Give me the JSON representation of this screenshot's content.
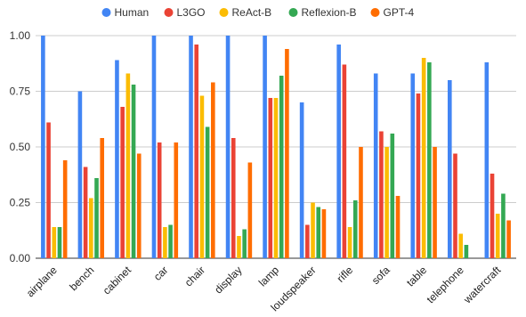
{
  "chart_data": {
    "type": "bar",
    "categories": [
      "airplane",
      "bench",
      "cabinet",
      "car",
      "chair",
      "display",
      "lamp",
      "loudspeaker",
      "rifle",
      "sofa",
      "table",
      "telephone",
      "watercraft"
    ],
    "series": [
      {
        "name": "Human",
        "color": "#4285F4",
        "values": [
          1.0,
          0.75,
          0.89,
          1.0,
          1.0,
          1.0,
          1.0,
          0.7,
          0.96,
          0.83,
          0.83,
          0.8,
          0.88
        ]
      },
      {
        "name": "L3GO",
        "color": "#EA4335",
        "values": [
          0.61,
          0.41,
          0.68,
          0.52,
          0.96,
          0.54,
          0.72,
          0.15,
          0.87,
          0.57,
          0.74,
          0.47,
          0.38
        ]
      },
      {
        "name": "ReAct-B",
        "color": "#FBBC04",
        "values": [
          0.14,
          0.27,
          0.83,
          0.14,
          0.73,
          0.1,
          0.72,
          0.25,
          0.14,
          0.5,
          0.9,
          0.11,
          0.2
        ]
      },
      {
        "name": "Reflexion-B",
        "color": "#34A853",
        "values": [
          0.14,
          0.36,
          0.78,
          0.15,
          0.59,
          0.13,
          0.82,
          0.23,
          0.26,
          0.56,
          0.88,
          0.06,
          0.29
        ]
      },
      {
        "name": "GPT-4",
        "color": "#FF6D01",
        "values": [
          0.44,
          0.54,
          0.47,
          0.52,
          0.79,
          0.43,
          0.94,
          0.22,
          0.5,
          0.28,
          0.5,
          0.0,
          0.17
        ]
      }
    ],
    "yticks": [
      "0.00",
      "0.25",
      "0.50",
      "0.75",
      "1.00"
    ],
    "ylim": [
      0,
      1.0
    ],
    "grid": true,
    "legend_position": "top"
  }
}
